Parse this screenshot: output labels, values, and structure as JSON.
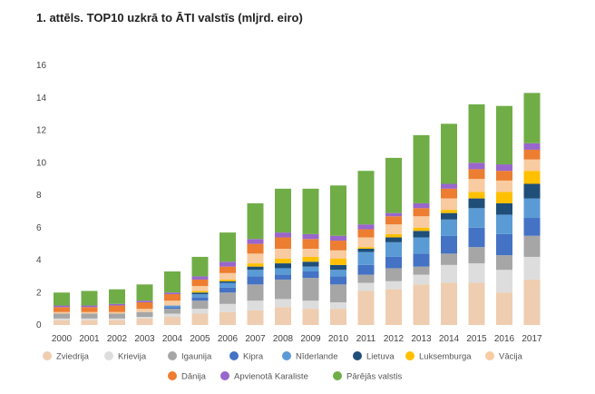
{
  "chart_data": {
    "type": "bar",
    "stacked": true,
    "title": "1. attēls. TOP10 uzkrā to ĀTI valstīs (mljrd. eiro)",
    "xlabel": "",
    "ylabel": "",
    "ylim": [
      0,
      16
    ],
    "yticks": [
      0,
      2,
      4,
      6,
      8,
      10,
      12,
      14,
      16
    ],
    "grid": false,
    "legend_position": "bottom",
    "categories": [
      "2000",
      "2001",
      "2002",
      "2003",
      "2004",
      "2005",
      "2006",
      "2007",
      "2008",
      "2009",
      "2010",
      "2011",
      "2012",
      "2013",
      "2014",
      "2015",
      "2016",
      "2017"
    ],
    "series": [
      {
        "name": "Zviedrija",
        "color": "#efcdb0",
        "values": [
          0.3,
          0.3,
          0.3,
          0.4,
          0.5,
          0.7,
          0.8,
          0.9,
          1.1,
          1.0,
          1.0,
          2.1,
          2.2,
          2.5,
          2.6,
          2.6,
          2.0,
          2.8
        ]
      },
      {
        "name": "Krievija",
        "color": "#dddddd",
        "values": [
          0.1,
          0.1,
          0.1,
          0.1,
          0.2,
          0.3,
          0.5,
          0.6,
          0.5,
          0.5,
          0.4,
          0.5,
          0.5,
          0.6,
          1.1,
          1.2,
          1.4,
          1.4
        ]
      },
      {
        "name": "Igaunija",
        "color": "#a6a6a6",
        "values": [
          0.3,
          0.3,
          0.3,
          0.3,
          0.3,
          0.5,
          0.7,
          1.0,
          1.2,
          1.4,
          1.1,
          0.5,
          0.8,
          0.5,
          0.7,
          1.0,
          0.9,
          1.3
        ]
      },
      {
        "name": "Kipra",
        "color": "#4472c4",
        "values": [
          0.0,
          0.0,
          0.0,
          0.0,
          0.1,
          0.2,
          0.3,
          0.5,
          0.3,
          0.4,
          0.5,
          0.6,
          0.7,
          0.8,
          1.1,
          1.2,
          1.3,
          1.1
        ]
      },
      {
        "name": "Nīderlande",
        "color": "#5b9bd5",
        "values": [
          0.0,
          0.0,
          0.0,
          0.0,
          0.1,
          0.2,
          0.3,
          0.4,
          0.4,
          0.3,
          0.4,
          0.8,
          0.9,
          1.0,
          1.0,
          1.2,
          1.2,
          1.2
        ]
      },
      {
        "name": "Lietuva",
        "color": "#1f4e79",
        "values": [
          0.0,
          0.0,
          0.0,
          0.0,
          0.0,
          0.1,
          0.1,
          0.2,
          0.3,
          0.3,
          0.3,
          0.2,
          0.3,
          0.4,
          0.4,
          0.6,
          0.7,
          0.9
        ]
      },
      {
        "name": "Luksemburga",
        "color": "#ffc000",
        "values": [
          0.0,
          0.0,
          0.0,
          0.0,
          0.0,
          0.1,
          0.1,
          0.2,
          0.3,
          0.3,
          0.4,
          0.1,
          0.2,
          0.2,
          0.2,
          0.4,
          0.7,
          0.8
        ]
      },
      {
        "name": "Vācija",
        "color": "#f8cba0",
        "values": [
          0.1,
          0.1,
          0.1,
          0.2,
          0.3,
          0.3,
          0.4,
          0.6,
          0.6,
          0.5,
          0.5,
          0.6,
          0.6,
          0.7,
          0.7,
          0.8,
          0.7,
          0.7
        ]
      },
      {
        "name": "Dānija",
        "color": "#ed7d31",
        "values": [
          0.3,
          0.3,
          0.4,
          0.4,
          0.4,
          0.4,
          0.4,
          0.6,
          0.7,
          0.6,
          0.6,
          0.5,
          0.5,
          0.5,
          0.6,
          0.6,
          0.6,
          0.6
        ]
      },
      {
        "name": "Apvienotā Karaliste",
        "color": "#9966cc",
        "values": [
          0.1,
          0.1,
          0.1,
          0.1,
          0.1,
          0.2,
          0.3,
          0.3,
          0.3,
          0.3,
          0.3,
          0.3,
          0.2,
          0.3,
          0.3,
          0.4,
          0.4,
          0.4
        ]
      },
      {
        "name": "Pārējās valstis",
        "color": "#70ad47",
        "values": [
          0.8,
          0.9,
          0.9,
          1.0,
          1.3,
          1.2,
          1.8,
          2.2,
          2.7,
          2.8,
          3.1,
          3.3,
          3.4,
          4.2,
          3.7,
          3.6,
          3.6,
          3.1
        ]
      }
    ]
  }
}
